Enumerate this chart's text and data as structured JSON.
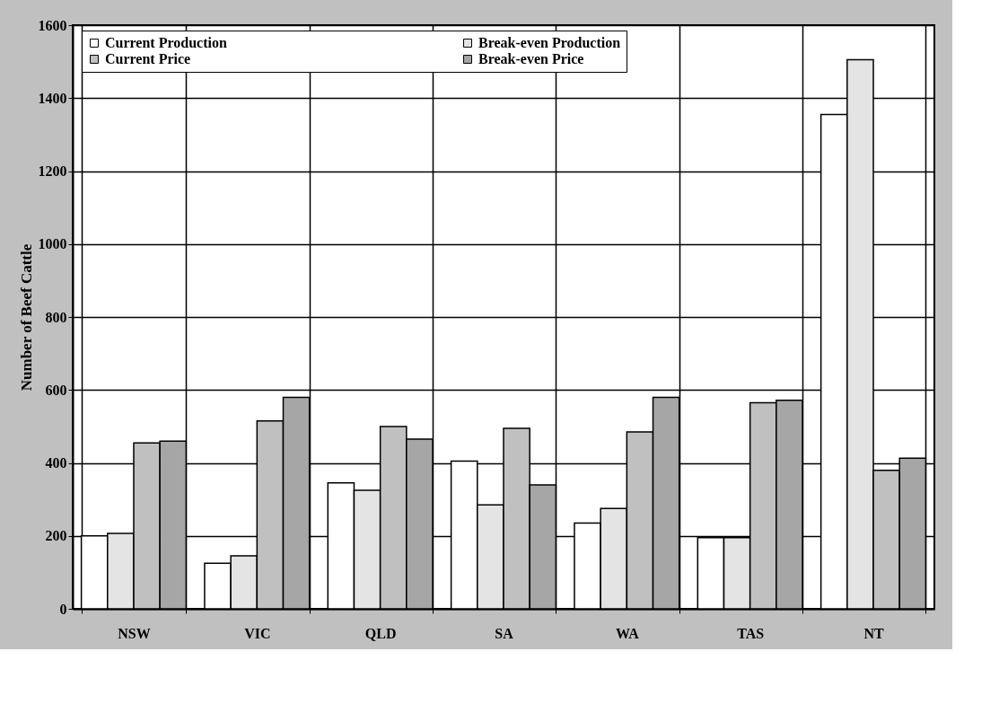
{
  "chart_data": {
    "type": "bar",
    "ylabel": "Number of Beef Cattle",
    "categories": [
      "NSW",
      "VIC",
      "QLD",
      "SA",
      "WA",
      "TAS",
      "NT"
    ],
    "series": [
      {
        "name": "Current Production",
        "color": "#ffffff",
        "values": [
          200,
          125,
          345,
          405,
          235,
          195,
          1355
        ]
      },
      {
        "name": "Break-even Production",
        "color": "#e4e4e4",
        "values": [
          207,
          145,
          325,
          285,
          275,
          195,
          1505
        ]
      },
      {
        "name": "Current Price",
        "color": "#c0c0c0",
        "values": [
          455,
          515,
          500,
          495,
          485,
          565,
          380
        ]
      },
      {
        "name": "Break-even Price",
        "color": "#a6a6a6",
        "values": [
          460,
          580,
          465,
          340,
          580,
          572,
          413
        ]
      }
    ],
    "ylim": [
      0,
      1600
    ],
    "yticks": [
      0,
      200,
      400,
      600,
      800,
      1000,
      1200,
      1400,
      1600
    ],
    "grid": true,
    "legend": "top"
  }
}
